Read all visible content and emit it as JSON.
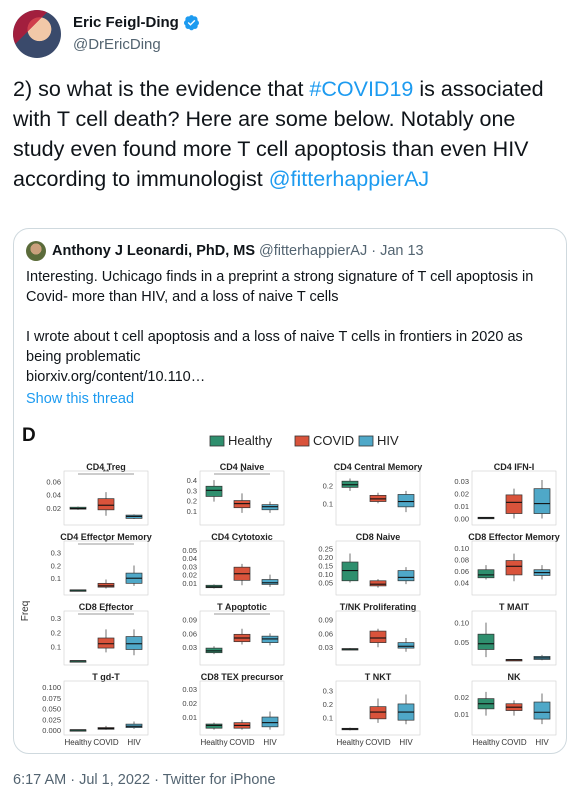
{
  "author": {
    "name": "Eric Feigl-Ding",
    "handle": "@DrEricDing"
  },
  "tweet": {
    "part1": "2) so what is the evidence that ",
    "hashtag": "#COVID19",
    "part2": " is associated with T cell death? Here are some below. Notably one study even found more T cell apoptosis than even HIV according to immunologist ",
    "mention": "@fitterhappierAJ"
  },
  "quote": {
    "name": "Anthony J Leonardi, PhD, MS",
    "handle": "@fitterhappierAJ",
    "separator": "·",
    "date": "Jan 13",
    "para1": "Interesting. Uchicago finds in a preprint a strong signature of T cell apoptosis in Covid- more than HIV, and a loss of naive T cells",
    "para2": "I wrote about t cell apoptosis and a loss of naive T cells in frontiers in 2020 as being problematic",
    "link": "biorxiv.org/content/10.110…",
    "show_thread": "Show this thread"
  },
  "figure": {
    "panel_letter": "D",
    "legend": [
      "Healthy",
      "COVID",
      "HIV"
    ],
    "colors": {
      "Healthy": "#2f8f6e",
      "COVID": "#d9533b",
      "HIV": "#4fa8c8"
    },
    "ylabel": "Freq",
    "xlabels": [
      "Healthy",
      "COVID",
      "HIV"
    ]
  },
  "chart_data": [
    {
      "type": "box",
      "title": "CD4 Treg",
      "categories": [
        "Healthy",
        "COVID",
        "HIV"
      ],
      "yticks": [
        "0.06",
        "0.04",
        "0.02"
      ],
      "ylim": [
        0,
        0.07
      ],
      "sig": "**",
      "boxes": [
        {
          "q1": 0.018,
          "med": 0.019,
          "q3": 0.021,
          "lo": 0.017,
          "hi": 0.022
        },
        {
          "q1": 0.017,
          "med": 0.024,
          "q3": 0.034,
          "lo": 0.008,
          "hi": 0.044
        },
        {
          "q1": 0.004,
          "med": 0.007,
          "q3": 0.009,
          "lo": 0.003,
          "hi": 0.01
        }
      ]
    },
    {
      "type": "box",
      "title": "CD4 Naive",
      "categories": [
        "Healthy",
        "COVID",
        "HIV"
      ],
      "yticks": [
        "0.4",
        "0.3",
        "0.2",
        "0.1"
      ],
      "ylim": [
        0,
        0.45
      ],
      "sig": "*",
      "boxes": [
        {
          "q1": 0.24,
          "med": 0.3,
          "q3": 0.34,
          "lo": 0.19,
          "hi": 0.4
        },
        {
          "q1": 0.13,
          "med": 0.17,
          "q3": 0.2,
          "lo": 0.08,
          "hi": 0.27
        },
        {
          "q1": 0.11,
          "med": 0.14,
          "q3": 0.16,
          "lo": 0.08,
          "hi": 0.19
        }
      ]
    },
    {
      "type": "box",
      "title": "CD4 Central Memory",
      "categories": [
        "Healthy",
        "COVID",
        "HIV"
      ],
      "yticks": [
        "0.2",
        "0.1"
      ],
      "ylim": [
        0,
        0.26
      ],
      "sig": "",
      "boxes": [
        {
          "q1": 0.19,
          "med": 0.205,
          "q3": 0.225,
          "lo": 0.17,
          "hi": 0.24
        },
        {
          "q1": 0.11,
          "med": 0.125,
          "q3": 0.145,
          "lo": 0.1,
          "hi": 0.16
        },
        {
          "q1": 0.08,
          "med": 0.11,
          "q3": 0.15,
          "lo": 0.05,
          "hi": 0.17
        }
      ]
    },
    {
      "type": "box",
      "title": "CD4 IFN-I",
      "categories": [
        "Healthy",
        "COVID",
        "HIV"
      ],
      "yticks": [
        "0.03",
        "0.02",
        "0.01",
        "0.00"
      ],
      "ylim": [
        -0.002,
        0.035
      ],
      "sig": "",
      "boxes": [
        {
          "q1": 0.0,
          "med": 0.0005,
          "q3": 0.001,
          "lo": 0.0,
          "hi": 0.001
        },
        {
          "q1": 0.004,
          "med": 0.013,
          "q3": 0.019,
          "lo": 0.0,
          "hi": 0.024
        },
        {
          "q1": 0.004,
          "med": 0.012,
          "q3": 0.024,
          "lo": 0.0,
          "hi": 0.031
        }
      ]
    },
    {
      "type": "box",
      "title": "CD4 Effector Memory",
      "categories": [
        "Healthy",
        "COVID",
        "HIV"
      ],
      "yticks": [
        "0.3",
        "0.2",
        "0.1"
      ],
      "ylim": [
        0.0,
        0.36
      ],
      "sig": "*",
      "boxes": [
        {
          "q1": 0.005,
          "med": 0.007,
          "q3": 0.009,
          "lo": 0.004,
          "hi": 0.01
        },
        {
          "q1": 0.03,
          "med": 0.04,
          "q3": 0.06,
          "lo": 0.02,
          "hi": 0.09
        },
        {
          "q1": 0.06,
          "med": 0.1,
          "q3": 0.14,
          "lo": 0.04,
          "hi": 0.2
        }
      ]
    },
    {
      "type": "box",
      "title": "CD4 Cytotoxic",
      "categories": [
        "Healthy",
        "COVID",
        "HIV"
      ],
      "yticks": [
        "0.05",
        "0.04",
        "0.03",
        "0.02",
        "0.01"
      ],
      "ylim": [
        0.0,
        0.056
      ],
      "sig": "",
      "boxes": [
        {
          "q1": 0.004,
          "med": 0.005,
          "q3": 0.007,
          "lo": 0.003,
          "hi": 0.008
        },
        {
          "q1": 0.013,
          "med": 0.021,
          "q3": 0.029,
          "lo": 0.007,
          "hi": 0.033
        },
        {
          "q1": 0.008,
          "med": 0.01,
          "q3": 0.014,
          "lo": 0.005,
          "hi": 0.02
        }
      ]
    },
    {
      "type": "box",
      "title": "CD8 Naive",
      "categories": [
        "Healthy",
        "COVID",
        "HIV"
      ],
      "yticks": [
        "0.25",
        "0.20",
        "0.15",
        "0.10",
        "0.05"
      ],
      "ylim": [
        0.0,
        0.27
      ],
      "sig": "",
      "boxes": [
        {
          "q1": 0.06,
          "med": 0.12,
          "q3": 0.17,
          "lo": 0.05,
          "hi": 0.22
        },
        {
          "q1": 0.03,
          "med": 0.04,
          "q3": 0.06,
          "lo": 0.02,
          "hi": 0.07
        },
        {
          "q1": 0.06,
          "med": 0.08,
          "q3": 0.12,
          "lo": 0.04,
          "hi": 0.14
        }
      ]
    },
    {
      "type": "box",
      "title": "CD8 Effector Memory",
      "categories": [
        "Healthy",
        "COVID",
        "HIV"
      ],
      "yticks": [
        "0.10",
        "0.08",
        "0.06",
        "0.04"
      ],
      "ylim": [
        0.025,
        0.105
      ],
      "sig": "",
      "boxes": [
        {
          "q1": 0.048,
          "med": 0.053,
          "q3": 0.062,
          "lo": 0.045,
          "hi": 0.07
        },
        {
          "q1": 0.053,
          "med": 0.068,
          "q3": 0.078,
          "lo": 0.042,
          "hi": 0.09
        },
        {
          "q1": 0.052,
          "med": 0.057,
          "q3": 0.062,
          "lo": 0.045,
          "hi": 0.07
        }
      ]
    },
    {
      "type": "box",
      "title": "CD8 Effector",
      "categories": [
        "Healthy",
        "COVID",
        "HIV"
      ],
      "yticks": [
        "0.3",
        "0.2",
        "0.1"
      ],
      "ylim": [
        0.0,
        0.32
      ],
      "sig": "*",
      "boxes": [
        {
          "q1": 0.0,
          "med": 0.001,
          "q3": 0.002,
          "lo": 0.0,
          "hi": 0.003
        },
        {
          "q1": 0.09,
          "med": 0.12,
          "q3": 0.16,
          "lo": 0.06,
          "hi": 0.22
        },
        {
          "q1": 0.08,
          "med": 0.12,
          "q3": 0.17,
          "lo": 0.04,
          "hi": 0.22
        }
      ]
    },
    {
      "type": "box",
      "title": "T Apoptotic",
      "categories": [
        "Healthy",
        "COVID",
        "HIV"
      ],
      "yticks": [
        "0.09",
        "0.06",
        "0.03"
      ],
      "ylim": [
        0.0,
        0.1
      ],
      "sig": "*",
      "boxes": [
        {
          "q1": 0.018,
          "med": 0.022,
          "q3": 0.028,
          "lo": 0.015,
          "hi": 0.032
        },
        {
          "q1": 0.042,
          "med": 0.05,
          "q3": 0.058,
          "lo": 0.036,
          "hi": 0.07
        },
        {
          "q1": 0.04,
          "med": 0.048,
          "q3": 0.054,
          "lo": 0.034,
          "hi": 0.06
        }
      ]
    },
    {
      "type": "box",
      "title": "T/NK Proliferating",
      "categories": [
        "Healthy",
        "COVID",
        "HIV"
      ],
      "yticks": [
        "0.09",
        "0.06",
        "0.03"
      ],
      "ylim": [
        0.0,
        0.1
      ],
      "sig": "",
      "boxes": [
        {
          "q1": 0.025,
          "med": 0.026,
          "q3": 0.027,
          "lo": 0.024,
          "hi": 0.028
        },
        {
          "q1": 0.04,
          "med": 0.05,
          "q3": 0.065,
          "lo": 0.03,
          "hi": 0.07
        },
        {
          "q1": 0.028,
          "med": 0.032,
          "q3": 0.04,
          "lo": 0.02,
          "hi": 0.05
        }
      ]
    },
    {
      "type": "box",
      "title": "T MAIT",
      "categories": [
        "Healthy",
        "COVID",
        "HIV"
      ],
      "yticks": [
        "0.10",
        "0.05"
      ],
      "ylim": [
        0.0,
        0.12
      ],
      "sig": "",
      "boxes": [
        {
          "q1": 0.03,
          "med": 0.045,
          "q3": 0.07,
          "lo": 0.01,
          "hi": 0.1
        },
        {
          "q1": 0.002,
          "med": 0.003,
          "q3": 0.004,
          "lo": 0.001,
          "hi": 0.005
        },
        {
          "q1": 0.004,
          "med": 0.008,
          "q3": 0.012,
          "lo": 0.002,
          "hi": 0.016
        }
      ]
    },
    {
      "type": "box",
      "title": "T gd-T",
      "categories": [
        "Healthy",
        "COVID",
        "HIV"
      ],
      "yticks": [
        "0.100",
        "0.075",
        "0.050",
        "0.025",
        "0.000"
      ],
      "ylim": [
        -0.002,
        0.105
      ],
      "sig": "",
      "boxes": [
        {
          "q1": 0.0,
          "med": 0.0005,
          "q3": 0.001,
          "lo": 0.0,
          "hi": 0.001
        },
        {
          "q1": 0.002,
          "med": 0.004,
          "q3": 0.006,
          "lo": 0.001,
          "hi": 0.01
        },
        {
          "q1": 0.006,
          "med": 0.009,
          "q3": 0.014,
          "lo": 0.003,
          "hi": 0.02
        }
      ]
    },
    {
      "type": "box",
      "title": "CD8 TEX precursor",
      "categories": [
        "Healthy",
        "COVID",
        "HIV"
      ],
      "yticks": [
        "0.03",
        "0.02",
        "0.01"
      ],
      "ylim": [
        0.0,
        0.033
      ],
      "sig": "",
      "boxes": [
        {
          "q1": 0.002,
          "med": 0.004,
          "q3": 0.005,
          "lo": 0.001,
          "hi": 0.006
        },
        {
          "q1": 0.002,
          "med": 0.004,
          "q3": 0.006,
          "lo": 0.001,
          "hi": 0.008
        },
        {
          "q1": 0.003,
          "med": 0.006,
          "q3": 0.01,
          "lo": 0.001,
          "hi": 0.014
        }
      ]
    },
    {
      "type": "box",
      "title": "T NKT",
      "categories": [
        "Healthy",
        "COVID",
        "HIV"
      ],
      "yticks": [
        "0.3",
        "0.2",
        "0.1"
      ],
      "ylim": [
        0.0,
        0.34
      ],
      "sig": "",
      "boxes": [
        {
          "q1": 0.01,
          "med": 0.015,
          "q3": 0.02,
          "lo": 0.005,
          "hi": 0.025
        },
        {
          "q1": 0.09,
          "med": 0.14,
          "q3": 0.18,
          "lo": 0.06,
          "hi": 0.24
        },
        {
          "q1": 0.08,
          "med": 0.14,
          "q3": 0.2,
          "lo": 0.05,
          "hi": 0.27
        }
      ]
    },
    {
      "type": "box",
      "title": "NK",
      "categories": [
        "Healthy",
        "COVID",
        "HIV"
      ],
      "yticks": [
        "0.02",
        "0.01"
      ],
      "ylim": [
        0.0,
        0.027
      ],
      "sig": "",
      "boxes": [
        {
          "q1": 0.013,
          "med": 0.016,
          "q3": 0.019,
          "lo": 0.009,
          "hi": 0.023
        },
        {
          "q1": 0.012,
          "med": 0.014,
          "q3": 0.016,
          "lo": 0.009,
          "hi": 0.018
        },
        {
          "q1": 0.007,
          "med": 0.011,
          "q3": 0.017,
          "lo": 0.004,
          "hi": 0.022
        }
      ]
    }
  ],
  "footer": {
    "time": "6:17 AM",
    "dot": "·",
    "date": "Jul 1, 2022",
    "source": "Twitter for iPhone"
  }
}
